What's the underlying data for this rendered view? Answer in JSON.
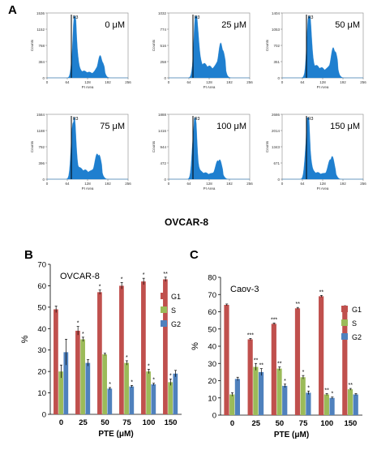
{
  "panel_labels": {
    "a": "A",
    "b": "B",
    "c": "C"
  },
  "histograms": {
    "caption": "OVCAR-8",
    "x_label": "PI Area",
    "y_label": "Counts",
    "gate_label": "R3",
    "x_ticks": [
      "0",
      "64",
      "128",
      "192",
      "256"
    ],
    "color": "#1f7fcf",
    "panels": [
      {
        "conc": "0 μM",
        "y_ticks": [
          "0",
          "384",
          "768",
          "1152",
          "1536"
        ]
      },
      {
        "conc": "25 μM",
        "y_ticks": [
          "0",
          "258",
          "516",
          "774",
          "1032"
        ]
      },
      {
        "conc": "50 μM",
        "y_ticks": [
          "0",
          "351",
          "702",
          "1053",
          "1404"
        ]
      },
      {
        "conc": "75 μM",
        "y_ticks": [
          "0",
          "396",
          "792",
          "1188",
          "1584"
        ]
      },
      {
        "conc": "100 μM",
        "y_ticks": [
          "0",
          "472",
          "944",
          "1416",
          "1888"
        ]
      },
      {
        "conc": "150 μM",
        "y_ticks": [
          "0",
          "671",
          "1343",
          "2014",
          "2686"
        ]
      }
    ]
  },
  "chart_data": [
    {
      "type": "bar",
      "title": "OVCAR-8",
      "xlabel": "PTE (μM)",
      "ylabel": "%",
      "ylim": [
        0,
        70
      ],
      "y_ticks": [
        "0",
        "10",
        "20",
        "30",
        "40",
        "50",
        "60",
        "70"
      ],
      "categories": [
        "0",
        "25",
        "50",
        "75",
        "100",
        "150"
      ],
      "series": [
        {
          "name": "G1",
          "color": "#c0504d",
          "values": [
            49,
            39,
            57,
            60,
            62,
            63
          ],
          "errors": [
            1.5,
            2,
            1,
            1.5,
            1.5,
            1
          ],
          "marks": [
            "",
            "*",
            "*",
            "*",
            "*",
            "**"
          ]
        },
        {
          "name": "S",
          "color": "#9bbb59",
          "values": [
            20,
            35,
            28,
            24,
            20,
            15
          ],
          "errors": [
            3,
            1,
            0.5,
            1,
            1,
            1.5
          ],
          "marks": [
            "",
            "*",
            "",
            "*",
            "*",
            "*"
          ]
        },
        {
          "name": "G2",
          "color": "#4f81bd",
          "values": [
            29,
            24,
            12,
            13,
            14,
            19
          ],
          "errors": [
            6,
            1.5,
            0.5,
            0.5,
            0.5,
            1.5
          ],
          "marks": [
            "",
            "",
            "*",
            "*",
            "*",
            ""
          ]
        }
      ],
      "legend": "right"
    },
    {
      "type": "bar",
      "title": "Caov-3",
      "xlabel": "PTE (μM)",
      "ylabel": "%",
      "ylim": [
        0,
        80
      ],
      "y_ticks": [
        "0",
        "10",
        "20",
        "30",
        "40",
        "50",
        "60",
        "70",
        "80"
      ],
      "categories": [
        "0",
        "25",
        "50",
        "75",
        "100",
        "150"
      ],
      "series": [
        {
          "name": "G1",
          "color": "#c0504d",
          "values": [
            64,
            44,
            53,
            62,
            69,
            63
          ],
          "errors": [
            0.5,
            0.5,
            0.5,
            0.5,
            0.5,
            0.5
          ],
          "marks": [
            "",
            "***",
            "***",
            "**",
            "**",
            ""
          ]
        },
        {
          "name": "S",
          "color": "#9bbb59",
          "values": [
            12,
            28,
            27,
            22,
            12,
            15
          ],
          "errors": [
            1,
            2,
            1,
            1,
            0.5,
            0.5
          ],
          "marks": [
            "",
            "**",
            "**",
            "*",
            "**",
            "**"
          ]
        },
        {
          "name": "G2",
          "color": "#4f81bd",
          "values": [
            21,
            25,
            17,
            13,
            10,
            12
          ],
          "errors": [
            1,
            2,
            1,
            1,
            0.5,
            0.5
          ],
          "marks": [
            "",
            "**",
            "*",
            "*",
            "*",
            ""
          ]
        }
      ],
      "legend": "right"
    }
  ]
}
